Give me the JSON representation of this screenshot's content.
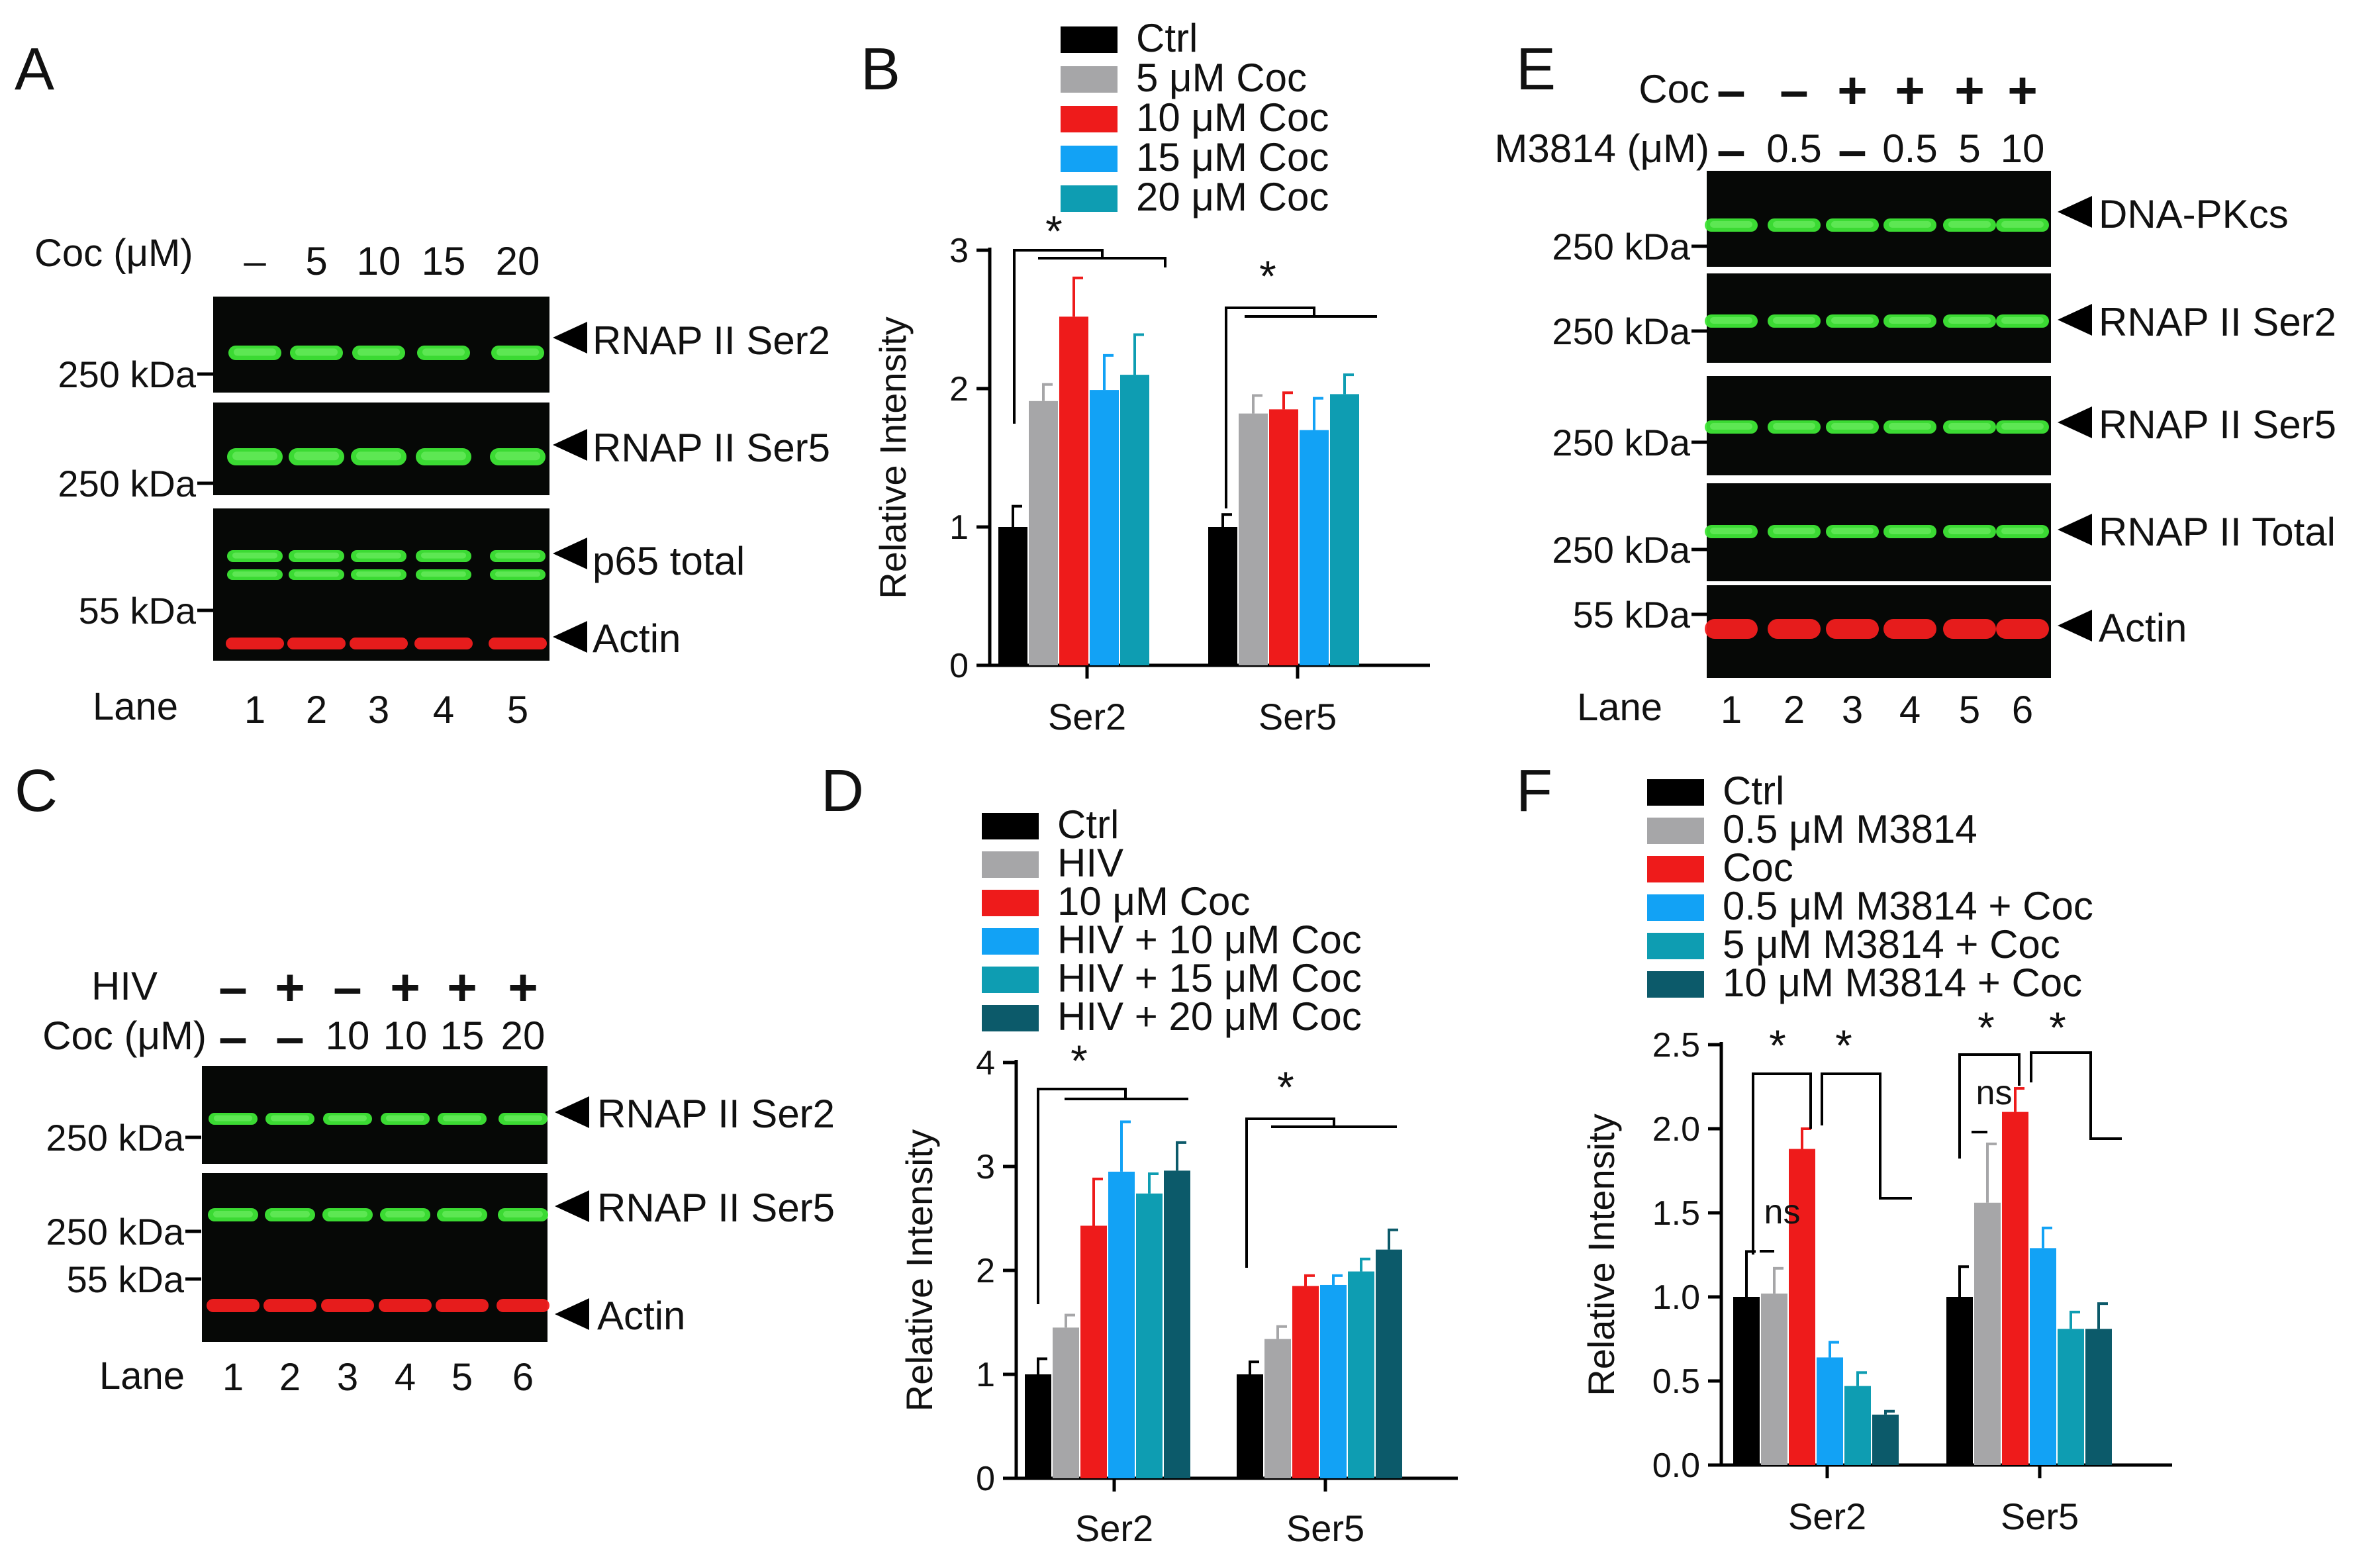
{
  "figure_type": "Multi-panel figure: western blots and bar charts",
  "colors": {
    "black": "#000000",
    "gray": "#a6a6a8",
    "red": "#ee1b1b",
    "blue": "#12a2f5",
    "teal": "#0e9db2",
    "dark_teal": "#0c5a6a",
    "band_green": "#3ee636",
    "band_red": "#f21e1e",
    "blot_bg": "#060806"
  },
  "panels": {
    "A": {
      "letter": "A",
      "cond_label": "Coc (μM)",
      "conditions": [
        "–",
        "5",
        "10",
        "15",
        "20"
      ],
      "lane_label": "Lane",
      "lanes": [
        "1",
        "2",
        "3",
        "4",
        "5"
      ],
      "blots": [
        {
          "marker": "250 kDa",
          "labels": [
            "RNAP II Ser2"
          ]
        },
        {
          "marker": "250 kDa",
          "labels": [
            "RNAP II Ser5"
          ]
        },
        {
          "marker": "55 kDa",
          "labels": [
            "p65 total",
            "Actin"
          ]
        }
      ]
    },
    "C": {
      "letter": "C",
      "rows": [
        {
          "label": "HIV",
          "values": [
            "–",
            "+",
            "–",
            "+",
            "+",
            "+"
          ]
        },
        {
          "label": "Coc (μM)",
          "values": [
            "–",
            "–",
            "10",
            "10",
            "15",
            "20"
          ]
        }
      ],
      "lane_label": "Lane",
      "lanes": [
        "1",
        "2",
        "3",
        "4",
        "5",
        "6"
      ],
      "blots": [
        {
          "marker": "250 kDa",
          "labels": [
            "RNAP II Ser2"
          ]
        },
        {
          "marker": "250 kDa",
          "labels": [
            "RNAP II Ser5"
          ]
        },
        {
          "marker": "55 kDa",
          "labels": [
            "Actin"
          ]
        }
      ]
    },
    "E": {
      "letter": "E",
      "rows": [
        {
          "label": "Coc",
          "values": [
            "–",
            "–",
            "+",
            "+",
            "+",
            "+"
          ]
        },
        {
          "label": "M3814 (μM)",
          "values": [
            "–",
            "0.5",
            "–",
            "0.5",
            "5",
            "10"
          ]
        }
      ],
      "lane_label": "Lane",
      "lanes": [
        "1",
        "2",
        "3",
        "4",
        "5",
        "6"
      ],
      "blots": [
        {
          "marker": "250 kDa",
          "labels": [
            "DNA-PKcs"
          ]
        },
        {
          "marker": "250 kDa",
          "labels": [
            "RNAP II Ser2"
          ]
        },
        {
          "marker": "250 kDa",
          "labels": [
            "RNAP II Ser5"
          ]
        },
        {
          "marker": "250 kDa",
          "labels": [
            "RNAP II Total"
          ]
        },
        {
          "marker": "55 kDa",
          "labels": [
            "Actin"
          ]
        }
      ]
    }
  },
  "chart_data": [
    {
      "panel": "B",
      "type": "bar",
      "title": "",
      "xlabel": "",
      "ylabel": "Relative Intensity",
      "categories": [
        "Ser2",
        "Ser5"
      ],
      "yticks": [
        "0",
        "1",
        "2",
        "3"
      ],
      "ylim": [
        0,
        3
      ],
      "series": [
        {
          "name": "Ctrl",
          "values": [
            1.0,
            1.0
          ],
          "errors": [
            0.15,
            0.09
          ]
        },
        {
          "name": "5 μM Coc",
          "values": [
            1.91,
            1.82
          ],
          "errors": [
            0.12,
            0.13
          ]
        },
        {
          "name": "10 μM Coc",
          "values": [
            2.52,
            1.85
          ],
          "errors": [
            0.28,
            0.12
          ]
        },
        {
          "name": "15 μM Coc",
          "values": [
            1.99,
            1.7
          ],
          "errors": [
            0.25,
            0.23
          ]
        },
        {
          "name": "20 μM Coc",
          "values": [
            2.1,
            1.96
          ],
          "errors": [
            0.29,
            0.14
          ]
        }
      ],
      "significance": [
        {
          "category": "Ser2",
          "label": "*"
        },
        {
          "category": "Ser5",
          "label": "*"
        }
      ]
    },
    {
      "panel": "D",
      "type": "bar",
      "title": "",
      "xlabel": "",
      "ylabel": "Relative Intensity",
      "categories": [
        "Ser2",
        "Ser5"
      ],
      "yticks": [
        "0",
        "1",
        "2",
        "3",
        "4"
      ],
      "ylim": [
        0,
        4
      ],
      "series": [
        {
          "name": "Ctrl",
          "values": [
            1.0,
            1.0
          ],
          "errors": [
            0.15,
            0.12
          ]
        },
        {
          "name": "HIV",
          "values": [
            1.45,
            1.34
          ],
          "errors": [
            0.12,
            0.12
          ]
        },
        {
          "name": "10 μM Coc",
          "values": [
            2.43,
            1.85
          ],
          "errors": [
            0.45,
            0.1
          ]
        },
        {
          "name": "HIV + 10 μM Coc",
          "values": [
            2.95,
            1.86
          ],
          "errors": [
            0.48,
            0.09
          ]
        },
        {
          "name": "HIV + 15 μM Coc",
          "values": [
            2.74,
            1.99
          ],
          "errors": [
            0.19,
            0.12
          ]
        },
        {
          "name": "HIV + 20 μM Coc",
          "values": [
            2.96,
            2.2
          ],
          "errors": [
            0.27,
            0.19
          ]
        }
      ],
      "significance": [
        {
          "category": "Ser2",
          "label": "*"
        },
        {
          "category": "Ser5",
          "label": "*"
        }
      ]
    },
    {
      "panel": "F",
      "type": "bar",
      "title": "",
      "xlabel": "",
      "ylabel": "Relative Intensity",
      "categories": [
        "Ser2",
        "Ser5"
      ],
      "yticks": [
        "0.0",
        "0.5",
        "1.0",
        "1.5",
        "2.0",
        "2.5"
      ],
      "ylim": [
        0,
        2.5
      ],
      "series": [
        {
          "name": "Ctrl",
          "values": [
            1.0,
            1.0
          ],
          "errors": [
            0.27,
            0.18
          ]
        },
        {
          "name": "0.5 μM M3814",
          "values": [
            1.02,
            1.56
          ],
          "errors": [
            0.15,
            0.35
          ]
        },
        {
          "name": "Coc",
          "values": [
            1.88,
            2.1
          ],
          "errors": [
            0.12,
            0.14
          ]
        },
        {
          "name": "0.5 μM M3814 + Coc",
          "values": [
            0.64,
            1.29
          ],
          "errors": [
            0.09,
            0.12
          ]
        },
        {
          "name": "5 μM M3814 + Coc",
          "values": [
            0.47,
            0.81
          ],
          "errors": [
            0.08,
            0.1
          ]
        },
        {
          "name": "10 μM M3814 + Coc",
          "values": [
            0.3,
            0.81
          ],
          "errors": [
            0.02,
            0.15
          ]
        }
      ],
      "significance": [
        {
          "category": "Ser2",
          "label": "ns"
        },
        {
          "category": "Ser2",
          "label": "*"
        },
        {
          "category": "Ser2",
          "label": "*"
        },
        {
          "category": "Ser5",
          "label": "ns"
        },
        {
          "category": "Ser5",
          "label": "*"
        },
        {
          "category": "Ser5",
          "label": "*"
        }
      ]
    }
  ]
}
